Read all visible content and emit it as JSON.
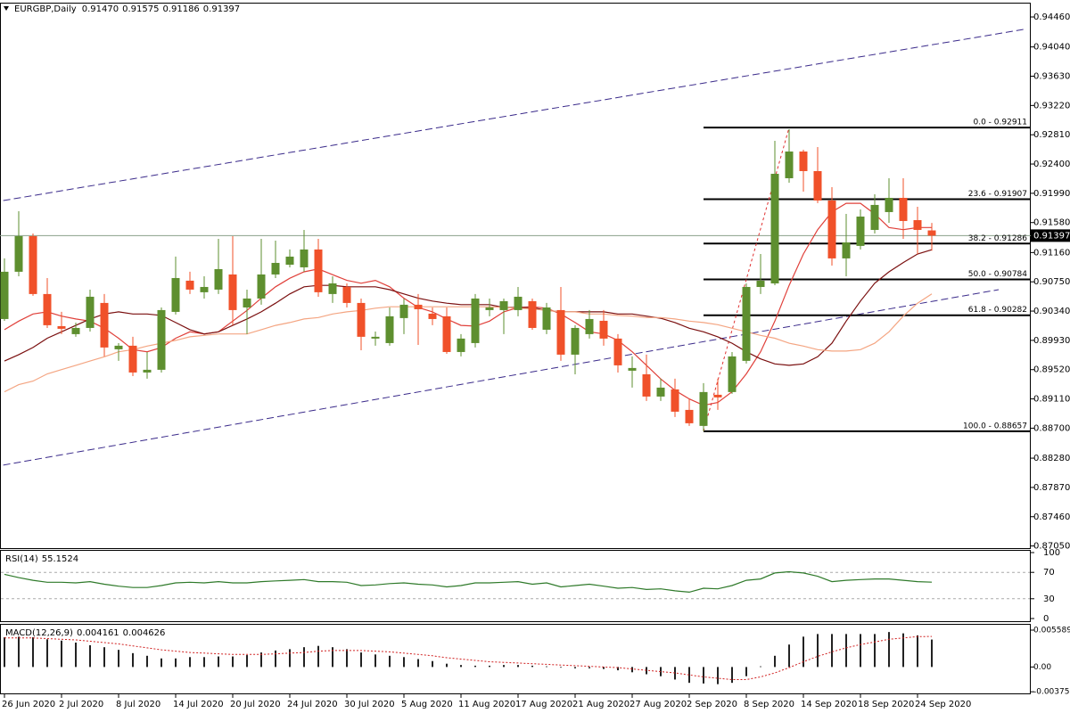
{
  "chart_data": [
    {
      "type": "candlestick",
      "title": "EURGBP,Daily",
      "header_values": [
        "0.91470",
        "0.91575",
        "0.91186",
        "0.91397"
      ],
      "categories": [
        "26 Jun 2020",
        null,
        null,
        null,
        "2 Jul 2020",
        null,
        null,
        null,
        "8 Jul 2020",
        null,
        null,
        null,
        "14 Jul 2020",
        null,
        null,
        null,
        "20 Jul 2020",
        null,
        null,
        null,
        "24 Jul 2020",
        null,
        null,
        null,
        "30 Jul 2020",
        null,
        null,
        null,
        "5 Aug 2020",
        null,
        null,
        null,
        "11 Aug 2020",
        null,
        null,
        null,
        "17 Aug 2020",
        null,
        null,
        null,
        "21 Aug 2020",
        null,
        null,
        null,
        "27 Aug 2020",
        null,
        null,
        null,
        "2 Sep 2020",
        null,
        null,
        null,
        "8 Sep 2020",
        null,
        null,
        null,
        "14 Sep 2020",
        null,
        null,
        null,
        "18 Sep 2020",
        null,
        null,
        null,
        "24 Sep 2020",
        null
      ],
      "open": [
        0.90229,
        0.90891,
        0.9139,
        0.90579,
        0.90129,
        0.90017,
        0.90104,
        0.90454,
        0.89805,
        0.89855,
        0.8948,
        0.89518,
        0.90329,
        0.90766,
        0.90604,
        0.90641,
        0.90853,
        0.90391,
        0.90516,
        0.90853,
        0.9099,
        0.90953,
        0.91203,
        0.90579,
        0.90678,
        0.90454,
        0.89955,
        0.89892,
        0.90242,
        0.90429,
        0.90304,
        0.90267,
        0.89767,
        0.89892,
        0.90354,
        0.90354,
        0.90354,
        0.90479,
        0.90079,
        0.90354,
        0.8973,
        0.90017,
        0.90204,
        0.89955,
        0.89505,
        0.89455,
        0.89143,
        0.89243,
        0.88956,
        0.88732,
        0.89168,
        0.89206,
        0.89643,
        0.90678,
        0.90728,
        0.92201,
        0.92575,
        0.92301,
        0.91889,
        0.91078,
        0.91253,
        0.91477,
        0.91727,
        0.91926,
        0.91614,
        0.9147
      ],
      "high": [
        0.91078,
        0.91739,
        0.91427,
        0.90803,
        0.90329,
        0.90179,
        0.90641,
        0.90579,
        0.89892,
        0.8998,
        0.89767,
        0.90391,
        0.91103,
        0.90891,
        0.90828,
        0.91352,
        0.9139,
        0.90641,
        0.91352,
        0.91327,
        0.91203,
        0.91477,
        0.91352,
        0.90828,
        0.90728,
        0.90516,
        0.90054,
        0.90391,
        0.90516,
        0.90579,
        0.90391,
        0.90391,
        0.90017,
        0.90579,
        0.90516,
        0.90516,
        0.90678,
        0.90516,
        0.90454,
        0.90678,
        0.90142,
        0.90354,
        0.90354,
        0.90017,
        0.89705,
        0.8973,
        0.89393,
        0.89393,
        0.89106,
        0.89331,
        0.89393,
        0.89767,
        0.90728,
        0.9114,
        0.92725,
        0.92887,
        0.926,
        0.92638,
        0.92076,
        0.91702,
        0.91764,
        0.91976,
        0.92201,
        0.92201,
        0.91802,
        0.91575
      ],
      "low": [
        0.90204,
        0.90828,
        0.90554,
        0.90104,
        0.90017,
        0.8998,
        0.90054,
        0.89705,
        0.89643,
        0.8943,
        0.89393,
        0.8948,
        0.90292,
        0.90579,
        0.90516,
        0.90579,
        0.90142,
        0.90017,
        0.90429,
        0.90803,
        0.90953,
        0.90891,
        0.90541,
        0.90454,
        0.90391,
        0.89792,
        0.89855,
        0.89855,
        0.90017,
        0.89867,
        0.90142,
        0.89742,
        0.89705,
        0.8983,
        0.90267,
        0.90017,
        0.90267,
        0.90079,
        0.90017,
        0.89643,
        0.89455,
        0.89955,
        0.89855,
        0.8948,
        0.89268,
        0.89081,
        0.89081,
        0.88856,
        0.88732,
        0.88657,
        0.88956,
        0.89181,
        0.89605,
        0.90579,
        0.90703,
        0.92139,
        0.92014,
        0.91852,
        0.90978,
        0.90828,
        0.91203,
        0.91427,
        0.91577,
        0.91352,
        0.9114,
        0.91186
      ],
      "close": [
        0.90891,
        0.9139,
        0.90579,
        0.90142,
        0.90092,
        0.90104,
        0.90541,
        0.8983,
        0.89855,
        0.8948,
        0.89518,
        0.90354,
        0.90803,
        0.90641,
        0.90678,
        0.90928,
        0.90354,
        0.90516,
        0.90853,
        0.91015,
        0.91103,
        0.91203,
        0.90604,
        0.90728,
        0.90454,
        0.8998,
        0.8998,
        0.90267,
        0.90429,
        0.90366,
        0.90229,
        0.89767,
        0.89955,
        0.90516,
        0.90391,
        0.90479,
        0.90541,
        0.90104,
        0.90391,
        0.8973,
        0.90104,
        0.90229,
        0.89955,
        0.8958,
        0.89543,
        0.89143,
        0.89268,
        0.88931,
        0.88769,
        0.89206,
        0.89131,
        0.89705,
        0.90678,
        0.90766,
        0.92263,
        0.92575,
        0.92301,
        0.91889,
        0.91078,
        0.91302,
        0.91664,
        0.91827,
        0.91926,
        0.91602,
        0.91477,
        0.91397
      ],
      "up_color": "#5e8f2f",
      "down_color": "#f0512a",
      "series": [
        {
          "color": "#e0403a",
          "values": [
            0.9008,
            0.902,
            0.903,
            0.9033,
            0.9027,
            0.9023,
            0.902,
            0.901,
            0.8996,
            0.898,
            0.8977,
            0.8983,
            0.8996,
            0.9005,
            0.9002,
            0.9005,
            0.902,
            0.9035,
            0.9052,
            0.9068,
            0.908,
            0.9089,
            0.9093,
            0.9085,
            0.9077,
            0.9073,
            0.9077,
            0.9068,
            0.9052,
            0.9039,
            0.9033,
            0.9023,
            0.9014,
            0.9013,
            0.902,
            0.9033,
            0.9039,
            0.904,
            0.9038,
            0.903,
            0.9018,
            0.9005,
            0.9002,
            0.8993,
            0.8977,
            0.8958,
            0.8939,
            0.8923,
            0.8911,
            0.8902,
            0.8906,
            0.8921,
            0.8946,
            0.8977,
            0.902,
            0.907,
            0.9114,
            0.9148,
            0.9173,
            0.9185,
            0.9185,
            0.917,
            0.9151,
            0.9148,
            0.9151,
            0.9151
          ]
        },
        {
          "color": "#7a0f0f",
          "values": [
            0.8964,
            0.8973,
            0.8983,
            0.8996,
            0.9005,
            0.9014,
            0.9023,
            0.903,
            0.9033,
            0.903,
            0.903,
            0.9028,
            0.9018,
            0.9008,
            0.9002,
            0.9005,
            0.9014,
            0.9023,
            0.9033,
            0.9045,
            0.9058,
            0.9068,
            0.907,
            0.907,
            0.9068,
            0.9068,
            0.9068,
            0.9064,
            0.9058,
            0.9052,
            0.9048,
            0.9045,
            0.9043,
            0.9043,
            0.9043,
            0.9039,
            0.9039,
            0.9039,
            0.9035,
            0.9033,
            0.9033,
            0.9033,
            0.9033,
            0.903,
            0.903,
            0.9027,
            0.9024,
            0.9018,
            0.901,
            0.9005,
            0.8998,
            0.8989,
            0.8977,
            0.8967,
            0.896,
            0.8958,
            0.896,
            0.897,
            0.8989,
            0.902,
            0.9048,
            0.9073,
            0.9089,
            0.9102,
            0.9114,
            0.912
          ]
        },
        {
          "color": "#f4a582",
          "values": [
            0.8921,
            0.8931,
            0.8936,
            0.8946,
            0.8952,
            0.8958,
            0.8964,
            0.897,
            0.8977,
            0.898,
            0.8985,
            0.8989,
            0.8993,
            0.8998,
            0.9,
            0.9002,
            0.9002,
            0.9002,
            0.9008,
            0.9014,
            0.9018,
            0.9023,
            0.9025,
            0.903,
            0.9033,
            0.9035,
            0.9038,
            0.904,
            0.904,
            0.904,
            0.904,
            0.904,
            0.904,
            0.904,
            0.904,
            0.9039,
            0.9038,
            0.9037,
            0.9035,
            0.9033,
            0.9033,
            0.903,
            0.903,
            0.9028,
            0.9027,
            0.9025,
            0.9025,
            0.9023,
            0.902,
            0.9018,
            0.9015,
            0.901,
            0.9005,
            0.9,
            0.8996,
            0.8989,
            0.8985,
            0.898,
            0.8978,
            0.8978,
            0.898,
            0.8989,
            0.9005,
            0.9027,
            0.9045,
            0.9058
          ]
        }
      ],
      "ylim": [
        0.8702,
        0.9466
      ],
      "yticks": [
        {
          "value": 0.9446,
          "label": "0.94460"
        },
        {
          "value": 0.9404,
          "label": "0.94040"
        },
        {
          "value": 0.9363,
          "label": "0.93630"
        },
        {
          "value": 0.9322,
          "label": "0.93220"
        },
        {
          "value": 0.9281,
          "label": "0.92810"
        },
        {
          "value": 0.924,
          "label": "0.92400"
        },
        {
          "value": 0.9199,
          "label": "0.91990"
        },
        {
          "value": 0.9158,
          "label": "0.91580"
        },
        {
          "value": 0.9116,
          "label": "0.91160"
        },
        {
          "value": 0.9075,
          "label": "0.90750"
        },
        {
          "value": 0.9034,
          "label": "0.90340"
        },
        {
          "value": 0.8993,
          "label": "0.89930"
        },
        {
          "value": 0.8952,
          "label": "0.89520"
        },
        {
          "value": 0.8911,
          "label": "0.89110"
        },
        {
          "value": 0.887,
          "label": "0.88700"
        },
        {
          "value": 0.8828,
          "label": "0.88280"
        },
        {
          "value": 0.8787,
          "label": "0.87870"
        },
        {
          "value": 0.8746,
          "label": "0.87460"
        },
        {
          "value": 0.8705,
          "label": "0.87050"
        }
      ],
      "current_price": 0.91397,
      "fib_levels": [
        {
          "value": 0.92911,
          "label": "0.0 - 0.92911"
        },
        {
          "value": 0.91907,
          "label": "23.6 - 0.91907"
        },
        {
          "value": 0.91286,
          "label": "38.2 - 0.91286"
        },
        {
          "value": 0.90784,
          "label": "50.0 - 0.90784"
        },
        {
          "value": 0.90282,
          "label": "61.8 - 0.90282"
        },
        {
          "value": 0.88657,
          "label": "100.0 - 0.88657"
        }
      ]
    },
    {
      "type": "line",
      "title": "RSI(14)",
      "color": "#2f7a2a",
      "values": [
        67,
        62,
        58,
        55,
        55,
        54,
        56,
        52,
        49,
        47,
        47,
        50,
        54,
        55,
        54,
        56,
        54,
        54,
        56,
        57,
        58,
        59,
        56,
        56,
        55,
        50,
        51,
        53,
        54,
        52,
        51,
        48,
        50,
        54,
        54,
        55,
        56,
        52,
        54,
        48,
        50,
        52,
        49,
        46,
        47,
        44,
        45,
        42,
        40,
        46,
        45,
        50,
        58,
        60,
        69,
        71,
        69,
        64,
        56,
        58,
        59,
        60,
        60,
        58,
        56,
        55.1524
      ],
      "ylim": [
        0,
        100
      ],
      "yticks": [
        100,
        70,
        30,
        0
      ],
      "levels": [
        70,
        30
      ]
    },
    {
      "type": "macd",
      "title": "MACD(12,26,9)",
      "color": "#222222",
      "signal_color": "#d02020",
      "values": [
        0.0045,
        0.0046,
        0.0045,
        0.0042,
        0.004,
        0.0037,
        0.0033,
        0.003,
        0.0026,
        0.0021,
        0.0017,
        0.0013,
        0.0013,
        0.0015,
        0.0015,
        0.0016,
        0.0016,
        0.0018,
        0.0022,
        0.0025,
        0.0027,
        0.003,
        0.0032,
        0.003,
        0.0027,
        0.0022,
        0.0019,
        0.0017,
        0.0015,
        0.0012,
        0.0009,
        0.0005,
        0.0003,
        0.0002,
        0.0002,
        0.0003,
        0.0003,
        0.0002,
        0.0001,
        -0.0001,
        -0.0002,
        -0.0002,
        -0.0003,
        -0.0005,
        -0.0008,
        -0.0011,
        -0.0014,
        -0.0019,
        -0.0024,
        -0.0025,
        -0.0026,
        -0.0024,
        -0.0014,
        0.0001,
        0.0017,
        0.0034,
        0.0046,
        0.005,
        0.005,
        0.005,
        0.005,
        0.005,
        0.0053,
        0.0051,
        0.0048,
        0.004161
      ],
      "signal": [
        0.0044,
        0.0044,
        0.0044,
        0.0043,
        0.0042,
        0.0041,
        0.0039,
        0.0037,
        0.0035,
        0.0032,
        0.0029,
        0.0026,
        0.0024,
        0.0022,
        0.0021,
        0.002,
        0.0019,
        0.0019,
        0.0019,
        0.002,
        0.0021,
        0.0022,
        0.0024,
        0.0025,
        0.0025,
        0.0025,
        0.0024,
        0.0023,
        0.0021,
        0.0019,
        0.0017,
        0.0014,
        0.0012,
        0.001,
        0.0008,
        0.0007,
        0.0006,
        0.0005,
        0.0004,
        0.0003,
        0.0002,
        0.0001,
        0,
        -0.0001,
        -0.0003,
        -0.0005,
        -0.0007,
        -0.0009,
        -0.0012,
        -0.0015,
        -0.0017,
        -0.0019,
        -0.0019,
        -0.0015,
        -0.0009,
        -0.0001,
        0.0008,
        0.0016,
        0.0023,
        0.0029,
        0.0034,
        0.0038,
        0.0042,
        0.0044,
        0.0046,
        0.004626
      ],
      "ylim": [
        -0.004,
        0.0064
      ],
      "yticks": [
        0.005589,
        {
          "value": 0,
          "label": "0.00"
        },
        -0.003753
      ]
    }
  ]
}
